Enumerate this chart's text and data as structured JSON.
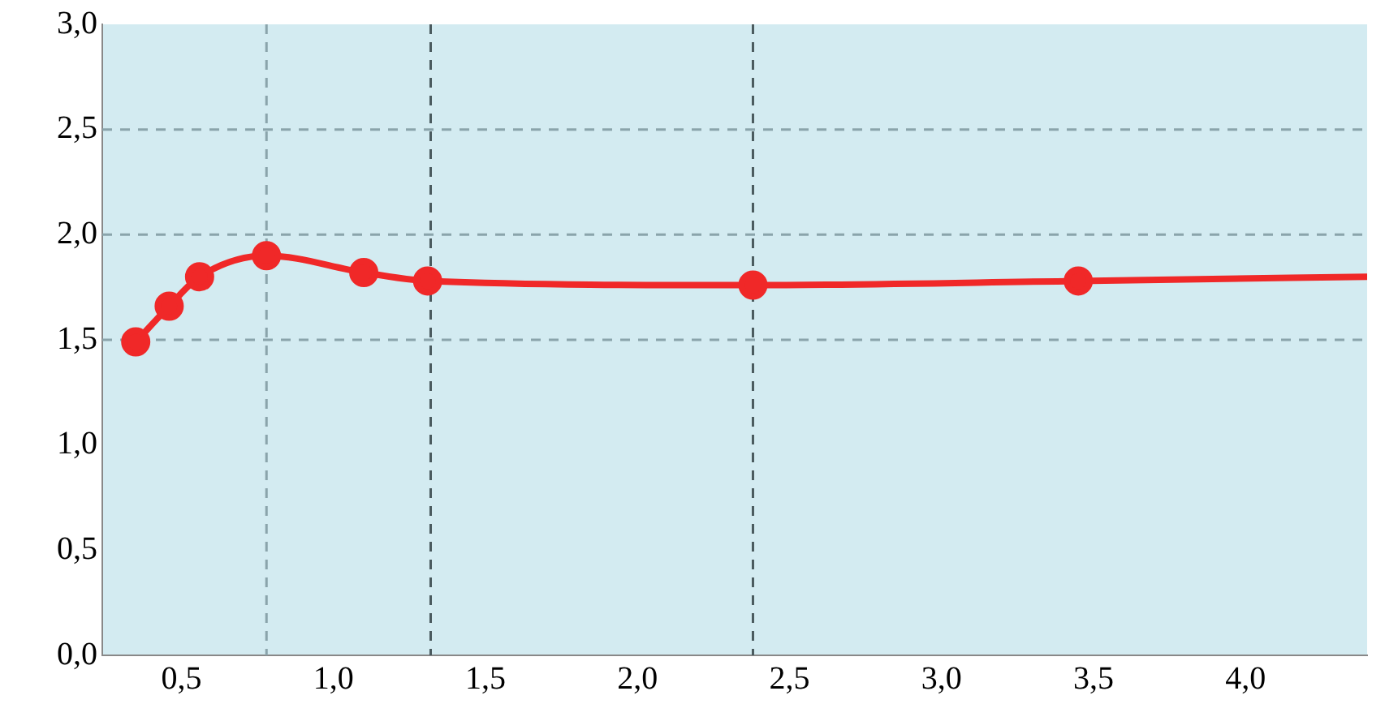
{
  "chart_data": {
    "type": "line",
    "x": [
      0.35,
      0.46,
      0.56,
      0.78,
      1.1,
      1.31,
      2.38,
      3.45,
      4.4
    ],
    "series": [
      {
        "color": "#f02828",
        "values": [
          1.49,
          1.66,
          1.8,
          1.9,
          1.82,
          1.78,
          1.76,
          1.78,
          1.8
        ]
      }
    ],
    "xlim": [
      0.24,
      4.4
    ],
    "xticks": [
      {
        "value": 0.5,
        "label": "0,5"
      },
      {
        "value": 1,
        "label": "1,0"
      },
      {
        "value": 1.5,
        "label": "1,5"
      },
      {
        "value": 2,
        "label": "2,0"
      },
      {
        "value": 2.5,
        "label": "2,5"
      },
      {
        "value": 3,
        "label": "3,0"
      },
      {
        "value": 3.5,
        "label": "3,5"
      },
      {
        "value": 4,
        "label": "4,0"
      }
    ],
    "ylim": [
      0,
      3
    ],
    "yticks": [
      {
        "value": 0,
        "label": "0,0"
      },
      {
        "value": 0.5,
        "label": "0,5"
      },
      {
        "value": 1,
        "label": "1,0"
      },
      {
        "value": 1.5,
        "label": "1,5"
      },
      {
        "value": 2,
        "label": "2,0"
      },
      {
        "value": 2.5,
        "label": "2,5"
      },
      {
        "value": 3,
        "label": "3,0"
      }
    ],
    "ref_lines": [
      {
        "axis": "y",
        "value": 1.5,
        "color": "#8aa4ab",
        "line_style": "dashed"
      },
      {
        "axis": "y",
        "value": 2,
        "color": "#8aa4ab",
        "line_style": "dashed"
      },
      {
        "axis": "y",
        "value": 2.5,
        "color": "#8aa4ab",
        "line_style": "dashed"
      },
      {
        "axis": "x",
        "value": 0.78,
        "color": "#8aa4ab",
        "line_style": "dashed"
      },
      {
        "axis": "x",
        "value": 1.32,
        "color": "#4a5a5e",
        "line_style": "dashed"
      },
      {
        "axis": "x",
        "value": 2.38,
        "color": "#4a5a5e",
        "line_style": "dashed"
      }
    ],
    "grid": false,
    "legend": false,
    "marker": "circle",
    "line_style": "solid"
  }
}
